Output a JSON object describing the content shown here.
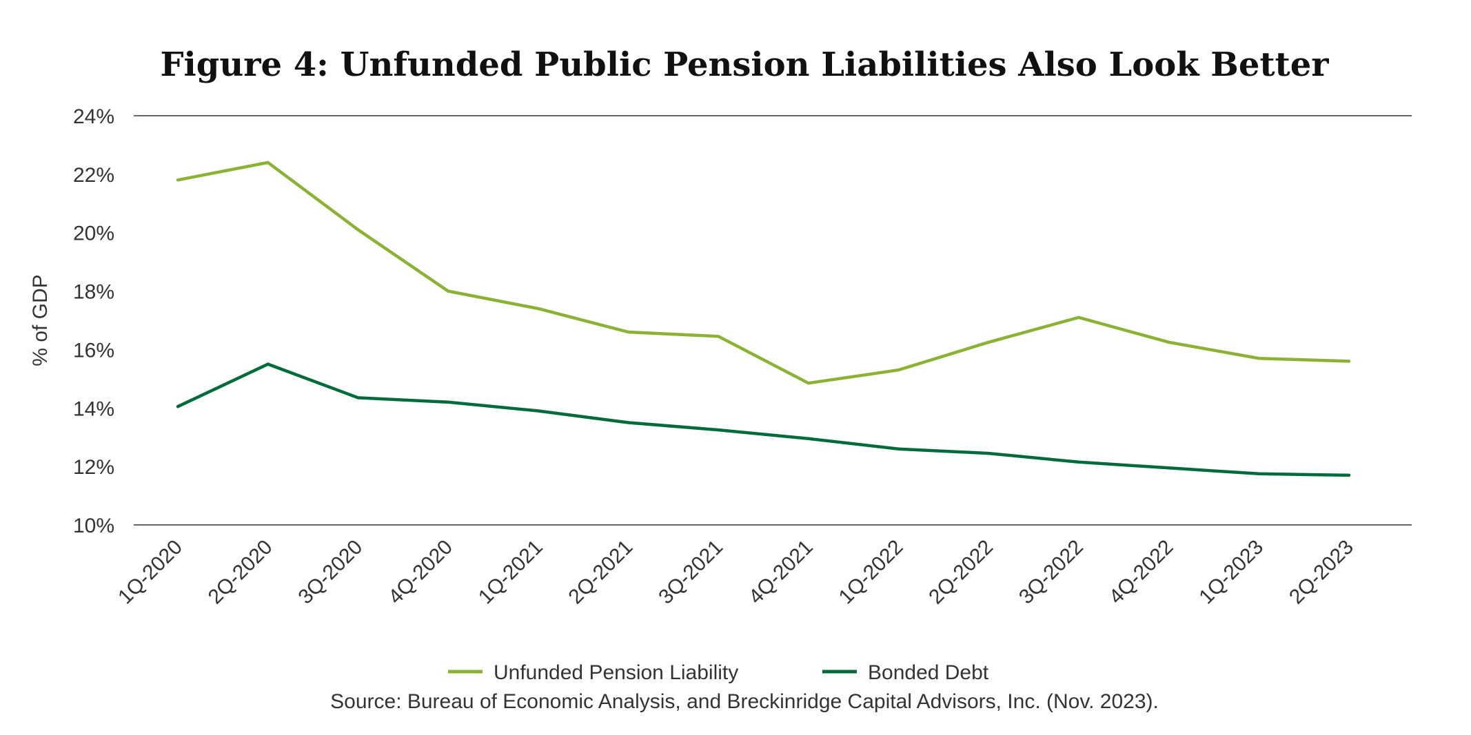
{
  "chart_data": {
    "type": "line",
    "title": "Figure 4: Unfunded Public Pension Liabilities Also Look Better",
    "xlabel": "",
    "ylabel": "% of GDP",
    "ylim": [
      10,
      24
    ],
    "yticks": [
      10,
      12,
      14,
      16,
      18,
      20,
      22,
      24
    ],
    "ytick_labels": [
      "10%",
      "12%",
      "14%",
      "16%",
      "18%",
      "20%",
      "22%",
      "24%"
    ],
    "grid": "top and bottom lines only",
    "categories": [
      "1Q-2020",
      "2Q-2020",
      "3Q-2020",
      "4Q-2020",
      "1Q-2021",
      "2Q-2021",
      "3Q-2021",
      "4Q-2021",
      "1Q-2022",
      "2Q-2022",
      "3Q-2022",
      "4Q-2022",
      "1Q-2023",
      "2Q-2023"
    ],
    "series": [
      {
        "name": "Unfunded Pension Liability",
        "color": "#8bb135",
        "values": [
          21.8,
          22.4,
          20.1,
          18.0,
          17.4,
          16.6,
          16.45,
          14.85,
          15.3,
          16.25,
          17.1,
          16.25,
          15.7,
          15.6
        ]
      },
      {
        "name": "Bonded Debt",
        "color": "#006b3a",
        "values": [
          14.05,
          15.5,
          14.35,
          14.2,
          13.9,
          13.5,
          13.25,
          12.95,
          12.6,
          12.45,
          12.15,
          11.95,
          11.75,
          11.7
        ]
      }
    ],
    "legend": "bottom-center",
    "source": "Source: Bureau of Economic Analysis, and Breckinridge Capital Advisors, Inc. (Nov. 2023)."
  }
}
